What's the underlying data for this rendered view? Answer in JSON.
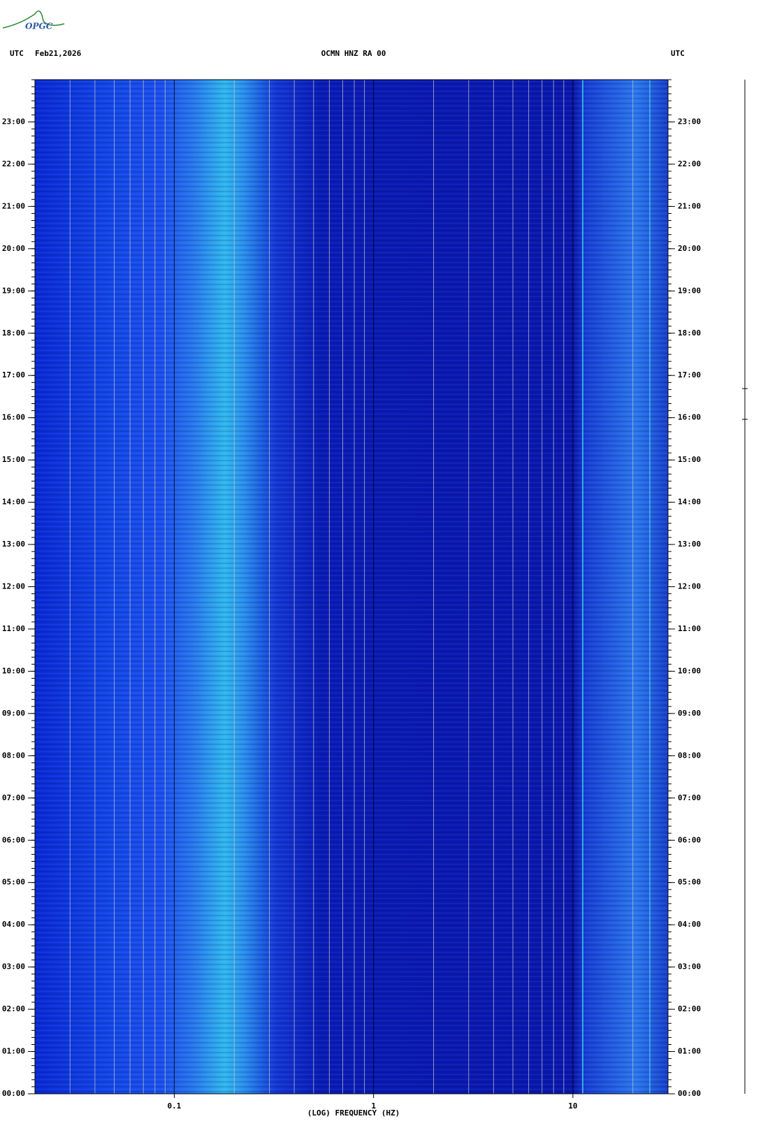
{
  "logo": "OPGC",
  "chart_data": {
    "type": "spectrogram",
    "header_left": "UTC",
    "date": "Feb21,2026",
    "title": "OCMN HNZ RA 00",
    "header_right": "UTC",
    "xlabel": "(LOG) FREQUENCY (HZ)",
    "xlog": true,
    "xlim": [
      0.02,
      30
    ],
    "xticks": [
      {
        "value": 0.1,
        "label": "0.1"
      },
      1,
      10
    ],
    "xgrid": [
      0.02,
      0.03,
      0.04,
      0.05,
      0.06,
      0.07,
      0.08,
      0.09,
      0.1,
      0.2,
      0.3,
      0.4,
      0.5,
      0.6,
      0.7,
      0.8,
      0.9,
      1,
      2,
      3,
      4,
      5,
      6,
      7,
      8,
      9,
      10,
      20,
      30
    ],
    "ylim": [
      0,
      24
    ],
    "yticks": [
      {
        "value": 0,
        "label": "00:00"
      },
      {
        "value": 1,
        "label": "01:00"
      },
      {
        "value": 2,
        "label": "02:00"
      },
      {
        "value": 3,
        "label": "03:00"
      },
      {
        "value": 4,
        "label": "04:00"
      },
      {
        "value": 5,
        "label": "05:00"
      },
      {
        "value": 6,
        "label": "06:00"
      },
      {
        "value": 7,
        "label": "07:00"
      },
      {
        "value": 8,
        "label": "08:00"
      },
      {
        "value": 9,
        "label": "09:00"
      },
      {
        "value": 10,
        "label": "10:00"
      },
      {
        "value": 11,
        "label": "11:00"
      },
      {
        "value": 12,
        "label": "12:00"
      },
      {
        "value": 13,
        "label": "13:00"
      },
      {
        "value": 14,
        "label": "14:00"
      },
      {
        "value": 15,
        "label": "15:00"
      },
      {
        "value": 16,
        "label": "16:00"
      },
      {
        "value": 17,
        "label": "17:00"
      },
      {
        "value": 18,
        "label": "18:00"
      },
      {
        "value": 19,
        "label": "19:00"
      },
      {
        "value": 20,
        "label": "20:00"
      },
      {
        "value": 21,
        "label": "21:00"
      },
      {
        "value": 22,
        "label": "22:00"
      },
      {
        "value": 23,
        "label": "23:00"
      }
    ]
  }
}
